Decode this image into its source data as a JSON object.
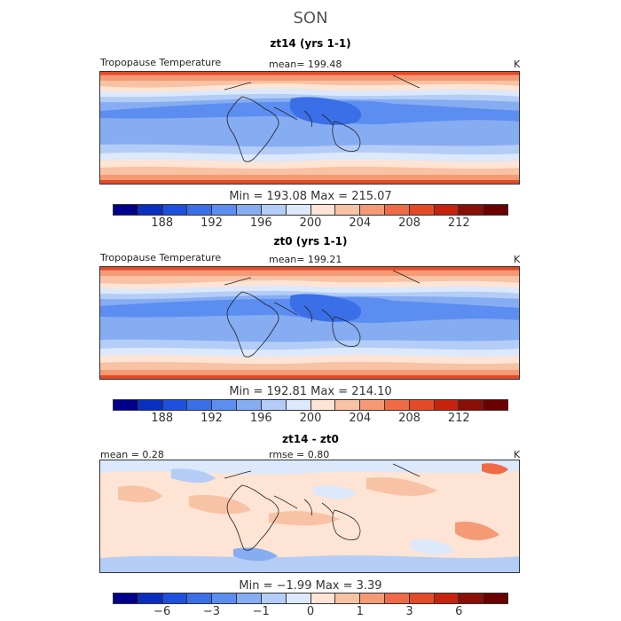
{
  "season": "SON",
  "panels": [
    {
      "title": "zt14 (yrs 1-1)",
      "variable": "Tropopause Temperature",
      "stat_text": "mean= 199.48",
      "unit": "K",
      "min_max_text": "Min = 193.08 Max = 215.07",
      "colorbar": {
        "colors": [
          "#00008b",
          "#0a2fc0",
          "#1e50e0",
          "#3a6fe8",
          "#5b8ef0",
          "#86acf2",
          "#b3cdf7",
          "#dce8fb",
          "#fde4d4",
          "#f8c2a4",
          "#f49b76",
          "#f06a46",
          "#e44a28",
          "#c8220f",
          "#8a0f06",
          "#6a0000"
        ],
        "tick_labels": [
          "188",
          "192",
          "196",
          "200",
          "204",
          "208",
          "212"
        ]
      }
    },
    {
      "title": "zt0 (yrs 1-1)",
      "variable": "Tropopause Temperature",
      "stat_text": "mean= 199.21",
      "unit": "K",
      "min_max_text": "Min = 192.81 Max = 214.10",
      "colorbar": {
        "colors": [
          "#00008b",
          "#0a2fc0",
          "#1e50e0",
          "#3a6fe8",
          "#5b8ef0",
          "#86acf2",
          "#b3cdf7",
          "#dce8fb",
          "#fde4d4",
          "#f8c2a4",
          "#f49b76",
          "#f06a46",
          "#e44a28",
          "#c8220f",
          "#8a0f06",
          "#6a0000"
        ],
        "tick_labels": [
          "188",
          "192",
          "196",
          "200",
          "204",
          "208",
          "212"
        ]
      }
    },
    {
      "title": "zt14 - zt0",
      "stat_left": "mean =    0.28",
      "stat_mid": "rmse =    0.80",
      "unit": "K",
      "min_max_text": "Min = −1.99 Max = 3.39",
      "colorbar": {
        "colors": [
          "#00008b",
          "#0a2fc0",
          "#1e50e0",
          "#3a6fe8",
          "#5b8ef0",
          "#86acf2",
          "#b3cdf7",
          "#dce8fb",
          "#fde4d4",
          "#f8c2a4",
          "#f49b76",
          "#f06a46",
          "#e44a28",
          "#c8220f",
          "#8a0f06",
          "#6a0000"
        ],
        "tick_labels": [
          "−6",
          "−3",
          "−1",
          "0",
          "1",
          "3",
          "6"
        ]
      }
    }
  ],
  "chart_data": [
    {
      "type": "heatmap",
      "title": "zt14 (yrs 1-1)",
      "subtitle": "Tropopause Temperature",
      "units": "K",
      "mean": 199.48,
      "min": 193.08,
      "max": 215.07,
      "colorbar_levels": [
        188,
        192,
        196,
        200,
        204,
        208,
        212
      ],
      "description_values": {
        "tropics_approx": 194,
        "midlatitudes_approx": 200,
        "polar_edges_approx": 214
      }
    },
    {
      "type": "heatmap",
      "title": "zt0 (yrs 1-1)",
      "subtitle": "Tropopause Temperature",
      "units": "K",
      "mean": 199.21,
      "min": 192.81,
      "max": 214.1,
      "colorbar_levels": [
        188,
        192,
        196,
        200,
        204,
        208,
        212
      ],
      "description_values": {
        "tropics_approx": 194,
        "midlatitudes_approx": 200,
        "polar_edges_approx": 213
      }
    },
    {
      "type": "heatmap",
      "title": "zt14 - zt0",
      "units": "K",
      "mean": 0.28,
      "rmse": 0.8,
      "min": -1.99,
      "max": 3.39,
      "colorbar_levels": [
        -6,
        -3,
        -1,
        0,
        1,
        3,
        6
      ]
    }
  ]
}
